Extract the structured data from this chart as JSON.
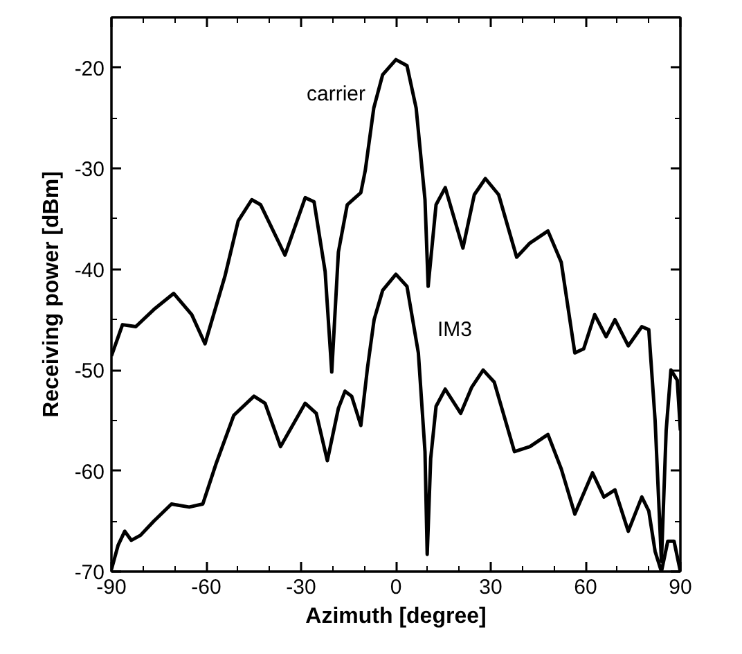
{
  "chart_data": {
    "type": "line",
    "xlabel": "Azimuth [degree]",
    "ylabel": "Receiving power [dBm]",
    "xlim": [
      -90,
      90
    ],
    "ylim": [
      -70,
      -15
    ],
    "xticks": [
      -90,
      -60,
      -30,
      0,
      30,
      60,
      90
    ],
    "yticks": [
      -70,
      -60,
      -50,
      -40,
      -30,
      -20
    ],
    "grid": false,
    "legend": false,
    "marker": "none",
    "line_style": "solid",
    "series": [
      {
        "name": "carrier",
        "color": "#000000",
        "x": [
          -90,
          -86.5,
          -82.3,
          -76.6,
          -70.3,
          -64.6,
          -60.4,
          -54.1,
          -49.9,
          -45.6,
          -42.8,
          -35.1,
          -28.7,
          -25.9,
          -22.4,
          -20.3,
          -18.2,
          -15.4,
          -11.1,
          -9.7,
          -7,
          -4.2,
          0,
          3.5,
          6.4,
          9.2,
          10.2,
          12.7,
          15.6,
          21.2,
          24.8,
          28.3,
          32.5,
          38.2,
          42.4,
          48.1,
          52.3,
          56.6,
          59.4,
          62.9,
          66.5,
          69.3,
          73.5,
          77.8,
          80,
          82,
          84,
          85.5,
          87,
          89,
          90
        ],
        "values": [
          -48.6,
          -45.5,
          -45.7,
          -44,
          -42.4,
          -44.5,
          -47.4,
          -40.7,
          -35.2,
          -33.1,
          -33.6,
          -38.6,
          -32.9,
          -33.3,
          -40.2,
          -50.2,
          -38.3,
          -33.6,
          -32.4,
          -30.2,
          -24,
          -20.7,
          -19.2,
          -19.8,
          -24,
          -33.1,
          -41.7,
          -33.6,
          -31.9,
          -37.9,
          -32.6,
          -31,
          -32.6,
          -38.8,
          -37.4,
          -36.2,
          -39.3,
          -48.3,
          -47.9,
          -44.5,
          -46.7,
          -45,
          -47.6,
          -45.7,
          -46,
          -55,
          -69,
          -56,
          -50,
          -51,
          -56
        ]
      },
      {
        "name": "IM3",
        "color": "#000000",
        "x": [
          -90,
          -87.9,
          -85.8,
          -83.7,
          -80.8,
          -76.6,
          -71,
          -65.4,
          -61.1,
          -56.9,
          -51.3,
          -44.9,
          -41.4,
          -36.5,
          -28.7,
          -25.2,
          -21.7,
          -18.2,
          -16.1,
          -14,
          -11.1,
          -9,
          -6.9,
          -4.2,
          0,
          3.5,
          7.1,
          9.2,
          9.9,
          11,
          12.7,
          15.6,
          20.5,
          24,
          27.6,
          31.1,
          37.5,
          42.4,
          48.1,
          52.3,
          56.6,
          62.2,
          65.8,
          69.3,
          73.5,
          77.8,
          80,
          82,
          84,
          86,
          88,
          90
        ],
        "values": [
          -69.8,
          -67.4,
          -66,
          -66.9,
          -66.4,
          -65,
          -63.3,
          -63.6,
          -63.3,
          -59.3,
          -54.5,
          -52.6,
          -53.3,
          -57.6,
          -53.3,
          -54.3,
          -59,
          -53.8,
          -52.1,
          -52.6,
          -55.5,
          -49.8,
          -45,
          -42.1,
          -40.5,
          -41.7,
          -48.3,
          -58.1,
          -68.3,
          -58.8,
          -53.6,
          -51.9,
          -54.3,
          -51.7,
          -50,
          -51.2,
          -58.1,
          -57.6,
          -56.4,
          -59.8,
          -64.3,
          -60.2,
          -62.6,
          -61.9,
          -66,
          -62.6,
          -64,
          -68,
          -70,
          -67,
          -67,
          -70
        ]
      }
    ]
  }
}
